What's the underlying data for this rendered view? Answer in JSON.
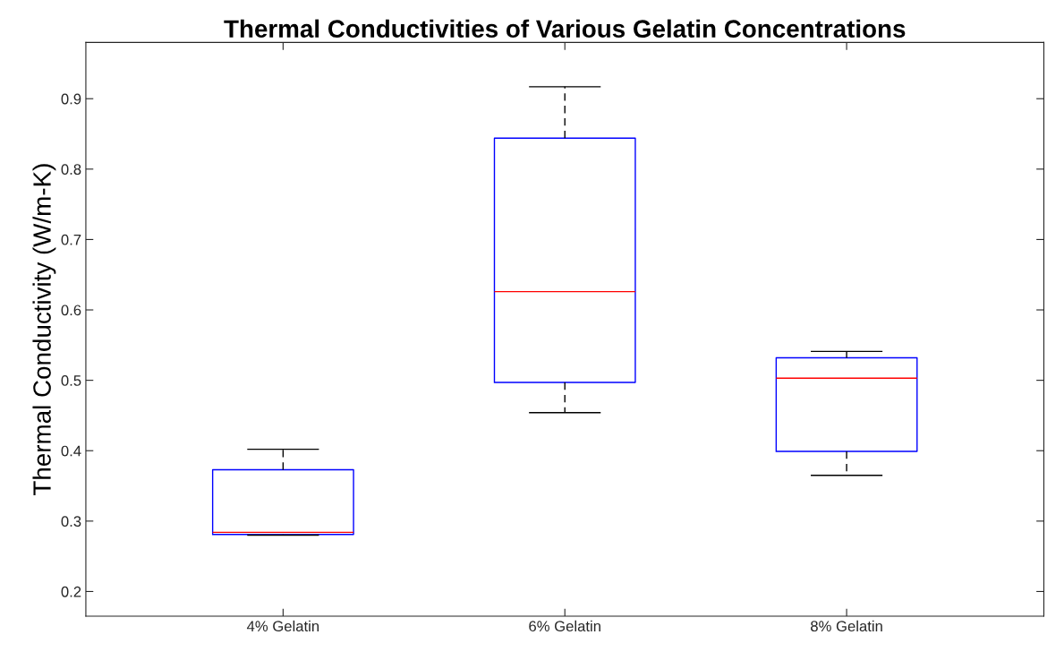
{
  "chart_data": {
    "type": "box",
    "title": "Thermal Conductivities of Various Gelatin Concentrations",
    "ylabel": "Thermal Conductivity (W/m-K)",
    "categories": [
      "4% Gelatin",
      "6% Gelatin",
      "8% Gelatin"
    ],
    "boxes": [
      {
        "low": 0.28,
        "q1": 0.281,
        "median": 0.284,
        "q3": 0.373,
        "high": 0.402
      },
      {
        "low": 0.454,
        "q1": 0.497,
        "median": 0.626,
        "q3": 0.844,
        "high": 0.917
      },
      {
        "low": 0.365,
        "q1": 0.399,
        "median": 0.503,
        "q3": 0.532,
        "high": 0.541
      }
    ],
    "color": "#0000ff",
    "line_style": "dashed",
    "ylim": [
      0.165,
      0.98
    ],
    "yticks": [
      0.2,
      0.3,
      0.4,
      0.5,
      0.6,
      0.7,
      0.8,
      0.9
    ],
    "grid": false
  }
}
